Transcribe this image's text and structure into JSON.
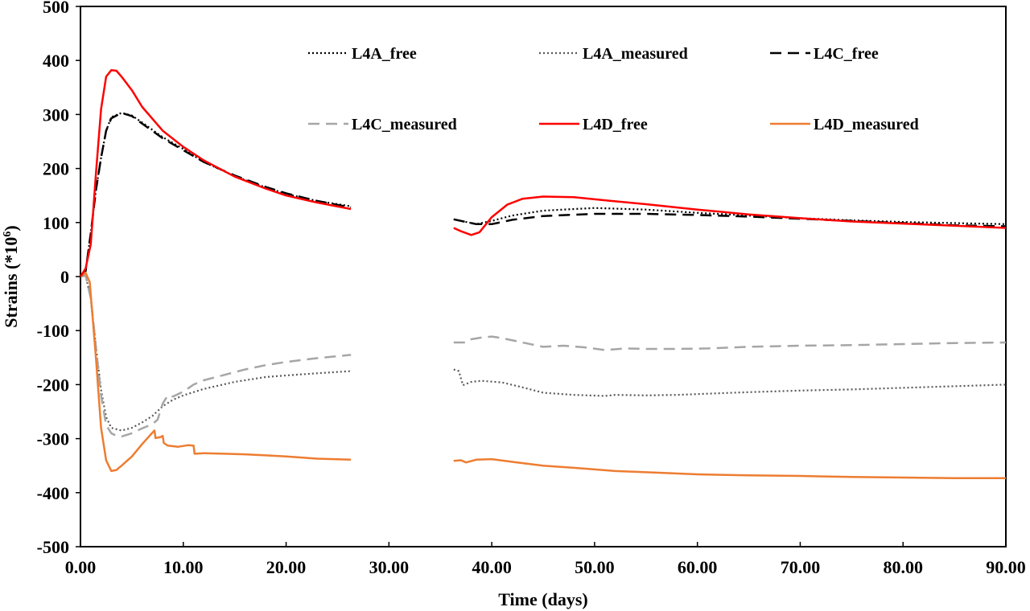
{
  "chart_data": {
    "type": "line",
    "title": "",
    "xlabel": "Time (days)",
    "ylabel": "Strains (*10",
    "ylabel_superscript": "6",
    "ylabel_suffix": ")",
    "xlim": [
      0,
      90
    ],
    "ylim": [
      -500,
      500
    ],
    "xticks": [
      0,
      10,
      20,
      30,
      40,
      50,
      60,
      70,
      80,
      90
    ],
    "xtick_labels": [
      "0.00",
      "10.00",
      "20.00",
      "30.00",
      "40.00",
      "50.00",
      "60.00",
      "70.00",
      "80.00",
      "90.00"
    ],
    "yticks": [
      500,
      400,
      300,
      200,
      100,
      0,
      -100,
      -200,
      -300,
      -400,
      -500
    ],
    "ytick_labels": [
      "500",
      "400",
      "300",
      "200",
      "100",
      "0",
      "-100",
      "-200",
      "-300",
      "-400",
      "-500"
    ],
    "grid": false,
    "legend_position": "top",
    "series": [
      {
        "name": "L4A_free",
        "color": "#000000",
        "style": "dotted",
        "segments": [
          [
            [
              0,
              0
            ],
            [
              0.5,
              10
            ],
            [
              1,
              80
            ],
            [
              1.5,
              160
            ],
            [
              2,
              220
            ],
            [
              2.5,
              270
            ],
            [
              3,
              295
            ],
            [
              4,
              303
            ],
            [
              5,
              298
            ],
            [
              6,
              285
            ],
            [
              8,
              258
            ],
            [
              10,
              236
            ],
            [
              12,
              212
            ],
            [
              15,
              186
            ],
            [
              18,
              165
            ],
            [
              20,
              153
            ],
            [
              23,
              140
            ],
            [
              26.3,
              130
            ]
          ],
          [
            [
              36.3,
              106
            ],
            [
              37.5,
              101
            ],
            [
              38.5,
              97
            ],
            [
              40,
              103
            ],
            [
              42,
              113
            ],
            [
              45,
              122
            ],
            [
              50,
              127
            ],
            [
              55,
              124
            ],
            [
              60,
              118
            ],
            [
              65,
              113
            ],
            [
              70,
              108
            ],
            [
              75,
              104
            ],
            [
              80,
              101
            ],
            [
              85,
              99
            ],
            [
              90,
              97
            ]
          ]
        ]
      },
      {
        "name": "L4A_measured",
        "color": "#595959",
        "style": "dotted",
        "segments": [
          [
            [
              0,
              0
            ],
            [
              0.5,
              2
            ],
            [
              1,
              -40
            ],
            [
              1.5,
              -130
            ],
            [
              2,
              -210
            ],
            [
              2.5,
              -260
            ],
            [
              3,
              -280
            ],
            [
              4,
              -285
            ],
            [
              5,
              -280
            ],
            [
              6,
              -270
            ],
            [
              7,
              -258
            ],
            [
              8,
              -240
            ],
            [
              9,
              -228
            ],
            [
              10,
              -220
            ],
            [
              12,
              -208
            ],
            [
              15,
              -195
            ],
            [
              18,
              -186
            ],
            [
              20,
              -183
            ],
            [
              23,
              -179
            ],
            [
              26.3,
              -175
            ]
          ],
          [
            [
              36.3,
              -172
            ],
            [
              36.8,
              -175
            ],
            [
              37.2,
              -201
            ],
            [
              38,
              -195
            ],
            [
              39,
              -193
            ],
            [
              41,
              -196
            ],
            [
              43,
              -205
            ],
            [
              45,
              -215
            ],
            [
              48,
              -219
            ],
            [
              51,
              -221
            ],
            [
              52,
              -219
            ],
            [
              55,
              -220
            ],
            [
              58,
              -219
            ],
            [
              62,
              -216
            ],
            [
              65,
              -214
            ],
            [
              70,
              -211
            ],
            [
              75,
              -209
            ],
            [
              80,
              -206
            ],
            [
              85,
              -203
            ],
            [
              90,
              -200
            ]
          ]
        ]
      },
      {
        "name": "L4C_free",
        "color": "#000000",
        "style": "dashed",
        "segments": [
          [
            [
              0,
              0
            ],
            [
              0.5,
              10
            ],
            [
              1,
              80
            ],
            [
              1.5,
              160
            ],
            [
              2,
              220
            ],
            [
              2.5,
              270
            ],
            [
              3,
              293
            ],
            [
              4,
              303
            ],
            [
              5,
              297
            ],
            [
              6,
              283
            ],
            [
              8,
              256
            ],
            [
              10,
              234
            ],
            [
              12,
              212
            ],
            [
              15,
              187
            ],
            [
              18,
              166
            ],
            [
              20,
              154
            ],
            [
              23,
              140
            ],
            [
              26.3,
              128
            ]
          ],
          [
            [
              36.3,
              106
            ],
            [
              37.5,
              101
            ],
            [
              38.5,
              97
            ],
            [
              40,
              97
            ],
            [
              42,
              105
            ],
            [
              45,
              112
            ],
            [
              50,
              116
            ],
            [
              55,
              116
            ],
            [
              60,
              114
            ],
            [
              65,
              111
            ],
            [
              70,
              107
            ],
            [
              75,
              103
            ],
            [
              80,
              99
            ],
            [
              85,
              95
            ],
            [
              90,
              93
            ]
          ]
        ]
      },
      {
        "name": "L4C_measured",
        "color": "#a6a6a6",
        "style": "dashed",
        "segments": [
          [
            [
              0,
              0
            ],
            [
              0.5,
              2
            ],
            [
              1,
              -40
            ],
            [
              1.5,
              -130
            ],
            [
              2,
              -220
            ],
            [
              2.5,
              -275
            ],
            [
              3,
              -290
            ],
            [
              3.5,
              -295
            ],
            [
              4,
              -296
            ],
            [
              5,
              -290
            ],
            [
              6,
              -281
            ],
            [
              7,
              -273
            ],
            [
              7.5,
              -265
            ],
            [
              8,
              -235
            ],
            [
              8.5,
              -220
            ],
            [
              9,
              -222
            ],
            [
              10,
              -213
            ],
            [
              11,
              -200
            ],
            [
              12,
              -192
            ],
            [
              14,
              -182
            ],
            [
              16,
              -172
            ],
            [
              18,
              -164
            ],
            [
              20,
              -158
            ],
            [
              23,
              -151
            ],
            [
              26.3,
              -145
            ]
          ],
          [
            [
              36.3,
              -122
            ],
            [
              37.5,
              -122
            ],
            [
              38,
              -116
            ],
            [
              39,
              -113
            ],
            [
              40,
              -111
            ],
            [
              41,
              -114
            ],
            [
              43,
              -122
            ],
            [
              45,
              -130
            ],
            [
              47,
              -128
            ],
            [
              49,
              -131
            ],
            [
              51,
              -136
            ],
            [
              53,
              -133
            ],
            [
              55,
              -134
            ],
            [
              58,
              -134
            ],
            [
              61,
              -133
            ],
            [
              65,
              -130
            ],
            [
              70,
              -128
            ],
            [
              75,
              -127
            ],
            [
              80,
              -125
            ],
            [
              85,
              -123
            ],
            [
              90,
              -122
            ]
          ]
        ]
      },
      {
        "name": "L4D_free",
        "color": "#ff0000",
        "style": "solid",
        "segments": [
          [
            [
              0,
              0
            ],
            [
              0.5,
              15
            ],
            [
              1,
              60
            ],
            [
              1.5,
              190
            ],
            [
              2,
              310
            ],
            [
              2.5,
              370
            ],
            [
              3,
              382
            ],
            [
              3.5,
              381
            ],
            [
              4,
              370
            ],
            [
              5,
              345
            ],
            [
              6,
              314
            ],
            [
              8,
              270
            ],
            [
              10,
              240
            ],
            [
              12,
              215
            ],
            [
              15,
              185
            ],
            [
              18,
              163
            ],
            [
              20,
              150
            ],
            [
              23,
              137
            ],
            [
              26.3,
              125
            ]
          ],
          [
            [
              36.3,
              90
            ],
            [
              37,
              84
            ],
            [
              38,
              77
            ],
            [
              38.8,
              82
            ],
            [
              40,
              110
            ],
            [
              41.5,
              133
            ],
            [
              43,
              144
            ],
            [
              45,
              148
            ],
            [
              48,
              147
            ],
            [
              50,
              143
            ],
            [
              55,
              134
            ],
            [
              60,
              124
            ],
            [
              65,
              115
            ],
            [
              70,
              108
            ],
            [
              75,
              102
            ],
            [
              80,
              98
            ],
            [
              85,
              94
            ],
            [
              90,
              90
            ]
          ]
        ]
      },
      {
        "name": "L4D_measured",
        "color": "#ed7d31",
        "style": "solid",
        "segments": [
          [
            [
              0,
              0
            ],
            [
              0.5,
              7
            ],
            [
              0.9,
              -10
            ],
            [
              1.5,
              -150
            ],
            [
              2,
              -280
            ],
            [
              2.5,
              -340
            ],
            [
              3,
              -360
            ],
            [
              3.5,
              -358
            ],
            [
              4,
              -350
            ],
            [
              5,
              -333
            ],
            [
              6,
              -310
            ],
            [
              6.8,
              -293
            ],
            [
              7.2,
              -285
            ],
            [
              7.3,
              -299
            ],
            [
              7.8,
              -297
            ],
            [
              8,
              -295
            ],
            [
              8.1,
              -308
            ],
            [
              8.5,
              -313
            ],
            [
              9.5,
              -315
            ],
            [
              10.5,
              -312
            ],
            [
              11,
              -313
            ],
            [
              11.1,
              -328
            ],
            [
              12,
              -327
            ],
            [
              14,
              -328
            ],
            [
              16,
              -329
            ],
            [
              18,
              -331
            ],
            [
              20,
              -333
            ],
            [
              23,
              -337
            ],
            [
              26.3,
              -339
            ]
          ],
          [
            [
              36.3,
              -341
            ],
            [
              37,
              -340
            ],
            [
              37.5,
              -344
            ],
            [
              38.5,
              -339
            ],
            [
              40,
              -338
            ],
            [
              42,
              -343
            ],
            [
              45,
              -350
            ],
            [
              48,
              -354
            ],
            [
              52,
              -360
            ],
            [
              56,
              -363
            ],
            [
              60,
              -366
            ],
            [
              65,
              -368
            ],
            [
              70,
              -369
            ],
            [
              75,
              -371
            ],
            [
              80,
              -372
            ],
            [
              85,
              -373
            ],
            [
              90,
              -373
            ]
          ]
        ]
      }
    ]
  }
}
